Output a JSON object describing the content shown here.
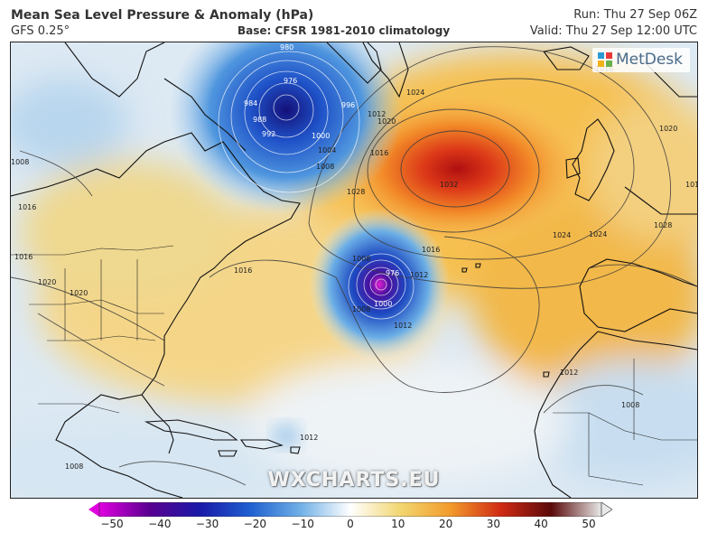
{
  "header": {
    "title": "Mean Sea Level Pressure & Anomaly (hPa)",
    "model": "GFS 0.25°",
    "base": "Base: CFSR 1981-2010 climatology",
    "run": "Run: Thu 27 Sep 06Z",
    "valid": "Valid: Thu 27 Sep 12:00 UTC"
  },
  "logo": {
    "text": "MetDesk"
  },
  "watermark": "WXCHARTS.EU",
  "map": {
    "region": "North Atlantic",
    "isobar_labels": [
      {
        "text": "980",
        "color": "white"
      },
      {
        "text": "976",
        "color": "white"
      },
      {
        "text": "984",
        "color": "white"
      },
      {
        "text": "988",
        "color": "white"
      },
      {
        "text": "992",
        "color": "white"
      },
      {
        "text": "996",
        "color": "white"
      },
      {
        "text": "1000",
        "color": "white"
      },
      {
        "text": "1004",
        "color": "dark"
      },
      {
        "text": "1008",
        "color": "dark"
      },
      {
        "text": "1012",
        "color": "dark"
      },
      {
        "text": "1016",
        "color": "dark"
      },
      {
        "text": "1020",
        "color": "dark"
      },
      {
        "text": "1024",
        "color": "dark"
      },
      {
        "text": "1028",
        "color": "dark"
      },
      {
        "text": "1032",
        "color": "dark"
      },
      {
        "text": "1016",
        "color": "dark"
      },
      {
        "text": "1012",
        "color": "dark"
      },
      {
        "text": "1008",
        "color": "dark"
      },
      {
        "text": "1016",
        "color": "dark"
      },
      {
        "text": "1020",
        "color": "dark"
      },
      {
        "text": "1016",
        "color": "dark"
      },
      {
        "text": "1008",
        "color": "dark"
      },
      {
        "text": "1012",
        "color": "dark"
      },
      {
        "text": "1000",
        "color": "white"
      },
      {
        "text": "976",
        "color": "white"
      },
      {
        "text": "1008",
        "color": "dark"
      },
      {
        "text": "1012",
        "color": "dark"
      },
      {
        "text": "1016",
        "color": "dark"
      },
      {
        "text": "1020",
        "color": "dark"
      },
      {
        "text": "1024",
        "color": "dark"
      },
      {
        "text": "1024",
        "color": "dark"
      },
      {
        "text": "1028",
        "color": "dark"
      },
      {
        "text": "1012",
        "color": "dark"
      },
      {
        "text": "1008",
        "color": "dark"
      },
      {
        "text": "1012",
        "color": "dark"
      },
      {
        "text": "1008",
        "color": "dark"
      },
      {
        "text": "1020",
        "color": "dark"
      },
      {
        "text": "1016",
        "color": "dark"
      }
    ]
  },
  "colorbar": {
    "ticks": [
      "−50",
      "−40",
      "−30",
      "−20",
      "−10",
      "0",
      "10",
      "20",
      "30",
      "40",
      "50"
    ],
    "stops": [
      "#e000e0",
      "#5a0090",
      "#1a1aa8",
      "#1f5fd0",
      "#6fb0e6",
      "#ffffff",
      "#f2d670",
      "#f29a2a",
      "#d02a14",
      "#5a0a0a",
      "#e8e8e8"
    ]
  },
  "colors": {
    "positive_anomaly": "#f0a030",
    "negative_anomaly": "#2a6ad0",
    "land_border": "#111111",
    "isobar": "#444444"
  }
}
